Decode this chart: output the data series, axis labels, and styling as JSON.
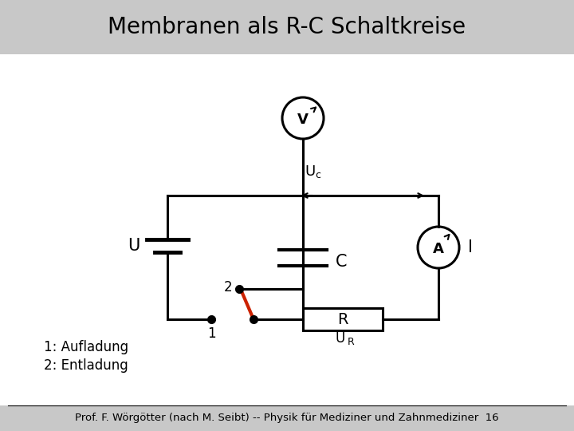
{
  "title": "Membranen als R-C Schaltkreise",
  "footer": "Prof. F. Wörgötter (nach M. Seibt) -- Physik für Mediziner und Zahnmediziner  16",
  "label_U": "U",
  "label_Uc": "U",
  "label_Uc_sub": "c",
  "label_C": "C",
  "label_R": "R",
  "label_UR": "U",
  "label_UR_sub": "R",
  "label_V": "V",
  "label_A": "A",
  "label_I": "I",
  "label_1": "1",
  "label_2": "2",
  "legend_1": "1: Aufladung",
  "legend_2": "2: Entladung",
  "bg_header": "#c8c8c8",
  "bg_main": "#ffffff",
  "bg_footer": "#c8c8c8",
  "line_color": "#000000",
  "switch_color": "#cc2200",
  "title_fontsize": 20,
  "footer_fontsize": 9.5
}
